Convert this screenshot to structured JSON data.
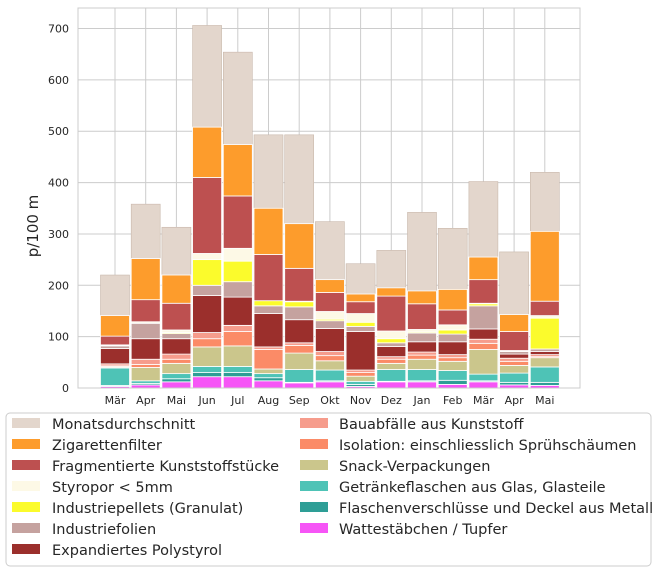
{
  "chart_data": {
    "type": "bar",
    "ylabel": "p/100 m",
    "xlabel": "",
    "title": "",
    "ylim": [
      0,
      740
    ],
    "yticks": [
      0,
      100,
      200,
      300,
      400,
      500,
      600,
      700
    ],
    "grid": true,
    "legend_placement": "below",
    "categories": [
      "Mär",
      "Apr",
      "Mai",
      "Jun",
      "Jul",
      "Aug",
      "Sep",
      "Okt",
      "Nov",
      "Dez",
      "Jan",
      "Feb",
      "Mär",
      "Apr",
      "Mai"
    ],
    "monthly_average": {
      "name": "Monatsdurchschnitt",
      "color": "#e3d6cc",
      "values": [
        220,
        358,
        313,
        706,
        654,
        493,
        493,
        324,
        242,
        268,
        342,
        311,
        402,
        265,
        420
      ]
    },
    "series": [
      {
        "name": "Wattestäbchen / Tupfer",
        "color": "#f655f6",
        "values": [
          3,
          6,
          12,
          22,
          22,
          14,
          10,
          12,
          3,
          12,
          12,
          7,
          12,
          6,
          5
        ]
      },
      {
        "name": "Flaschenverschlüsse und Deckel aus Metall",
        "color": "#2e9e96",
        "values": [
          2,
          3,
          6,
          8,
          8,
          6,
          1,
          2,
          4,
          1,
          2,
          8,
          2,
          5,
          6
        ]
      },
      {
        "name": "Getränkeflaschen aus Glas, Glasteile",
        "color": "#4ec3b6",
        "values": [
          34,
          5,
          10,
          12,
          12,
          8,
          25,
          21,
          6,
          23,
          22,
          19,
          13,
          18,
          30
        ]
      },
      {
        "name": "Snack-Verpackungen",
        "color": "#cbc68c",
        "values": [
          2,
          26,
          20,
          38,
          40,
          9,
          32,
          18,
          10,
          12,
          20,
          18,
          48,
          15,
          18
        ]
      },
      {
        "name": "Isolation: einschliesslich Sprühschäumen",
        "color": "#fb8b67",
        "values": [
          2,
          6,
          8,
          16,
          28,
          38,
          15,
          10,
          7,
          8,
          8,
          7,
          12,
          8,
          2
        ]
      },
      {
        "name": "Bauabfälle aus Kunststoff",
        "color": "#f69c8c",
        "values": [
          4,
          10,
          10,
          12,
          12,
          5,
          5,
          8,
          5,
          5,
          6,
          6,
          8,
          6,
          4
        ]
      },
      {
        "name": "Expandiertes Polystyrol",
        "color": "#9b2f2c",
        "values": [
          30,
          40,
          30,
          72,
          55,
          65,
          45,
          45,
          75,
          20,
          20,
          25,
          20,
          8,
          6
        ]
      },
      {
        "name": "Industriefolien",
        "color": "#c5a29f",
        "values": [
          5,
          30,
          10,
          20,
          30,
          15,
          25,
          15,
          10,
          7,
          17,
          15,
          45,
          5,
          5
        ]
      },
      {
        "name": "Industriepellets (Granulat)",
        "color": "#fbfb2c",
        "values": [
          1,
          0,
          2,
          50,
          40,
          10,
          10,
          3,
          8,
          8,
          2,
          8,
          4,
          0,
          60
        ]
      },
      {
        "name": "Styropor < 5mm",
        "color": "#fdf9e6",
        "values": [
          1,
          3,
          5,
          12,
          25,
          0,
          1,
          15,
          17,
          15,
          5,
          10,
          1,
          2,
          5
        ]
      },
      {
        "name": "Fragmentierte Kunststoffstücke",
        "color": "#bd5050",
        "values": [
          17,
          43,
          52,
          148,
          102,
          90,
          64,
          37,
          23,
          68,
          50,
          29,
          46,
          37,
          28
        ]
      },
      {
        "name": "Zigarettenfilter",
        "color": "#fd9c2c",
        "values": [
          40,
          80,
          55,
          98,
          100,
          90,
          87,
          25,
          15,
          16,
          25,
          40,
          44,
          33,
          136
        ]
      }
    ],
    "legend_column_1": [
      "Monatsdurchschnitt",
      "Zigarettenfilter",
      "Fragmentierte Kunststoffstücke",
      "Styropor < 5mm",
      "Industriepellets (Granulat)",
      "Industriefolien",
      "Expandiertes Polystyrol"
    ],
    "legend_column_2": [
      "Bauabfälle aus Kunststoff",
      "Isolation: einschliesslich Sprühschäumen",
      "Snack-Verpackungen",
      "Getränkeflaschen aus Glas, Glasteile",
      "Flaschenverschlüsse und Deckel aus Metall",
      "Wattestäbchen / Tupfer"
    ]
  }
}
